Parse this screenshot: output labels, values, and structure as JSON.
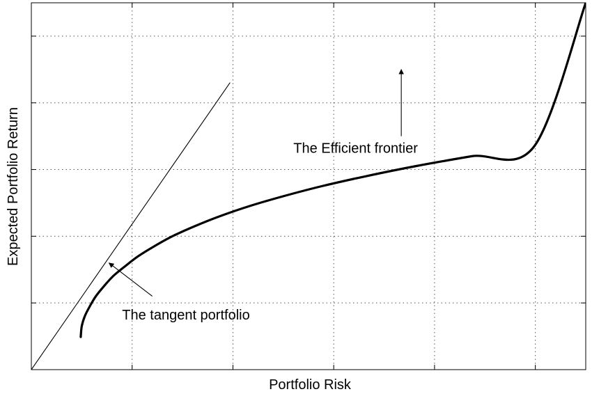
{
  "chart_data": {
    "type": "line",
    "title": "",
    "xlabel": "Portfolio Risk",
    "ylabel": "Expected Portfolio Return",
    "xlim": [
      0,
      5.5
    ],
    "ylim": [
      0,
      5.5
    ],
    "grid": true,
    "grid_style": "dotted",
    "tick_labels_shown": false,
    "x_ticks": [
      0,
      1,
      2,
      3,
      4,
      5,
      5.5
    ],
    "y_ticks": [
      0,
      1,
      2,
      3,
      4,
      5,
      5.5
    ],
    "series": [
      {
        "role": "efficient-frontier",
        "style": "thick",
        "x": [
          0.49,
          0.5,
          0.53,
          0.58,
          0.64,
          0.72,
          0.81,
          0.93,
          1.06,
          1.22,
          1.4,
          1.62,
          1.87,
          2.16,
          2.5,
          2.88,
          3.32,
          3.81,
          4.37,
          4.99,
          5.5
        ],
        "y": [
          0.49,
          0.65,
          0.8,
          0.95,
          1.1,
          1.25,
          1.4,
          1.55,
          1.7,
          1.85,
          2.0,
          2.15,
          2.3,
          2.45,
          2.6,
          2.75,
          2.9,
          3.05,
          3.2,
          3.35,
          5.5
        ]
      },
      {
        "role": "tangent-line",
        "style": "thin",
        "x": [
          0,
          1.97
        ],
        "y": [
          0,
          4.3
        ]
      }
    ],
    "annotations": [
      {
        "text": "The Efficient frontier",
        "text_at": [
          2.6,
          3.25
        ],
        "arrow_tail": [
          3.67,
          3.5
        ],
        "arrow_head": [
          3.67,
          4.5
        ]
      },
      {
        "text": "The tangent portfolio",
        "text_at": [
          0.9,
          0.75
        ],
        "arrow_tail": [
          1.2,
          1.1
        ],
        "arrow_head": [
          0.77,
          1.6
        ]
      }
    ]
  }
}
